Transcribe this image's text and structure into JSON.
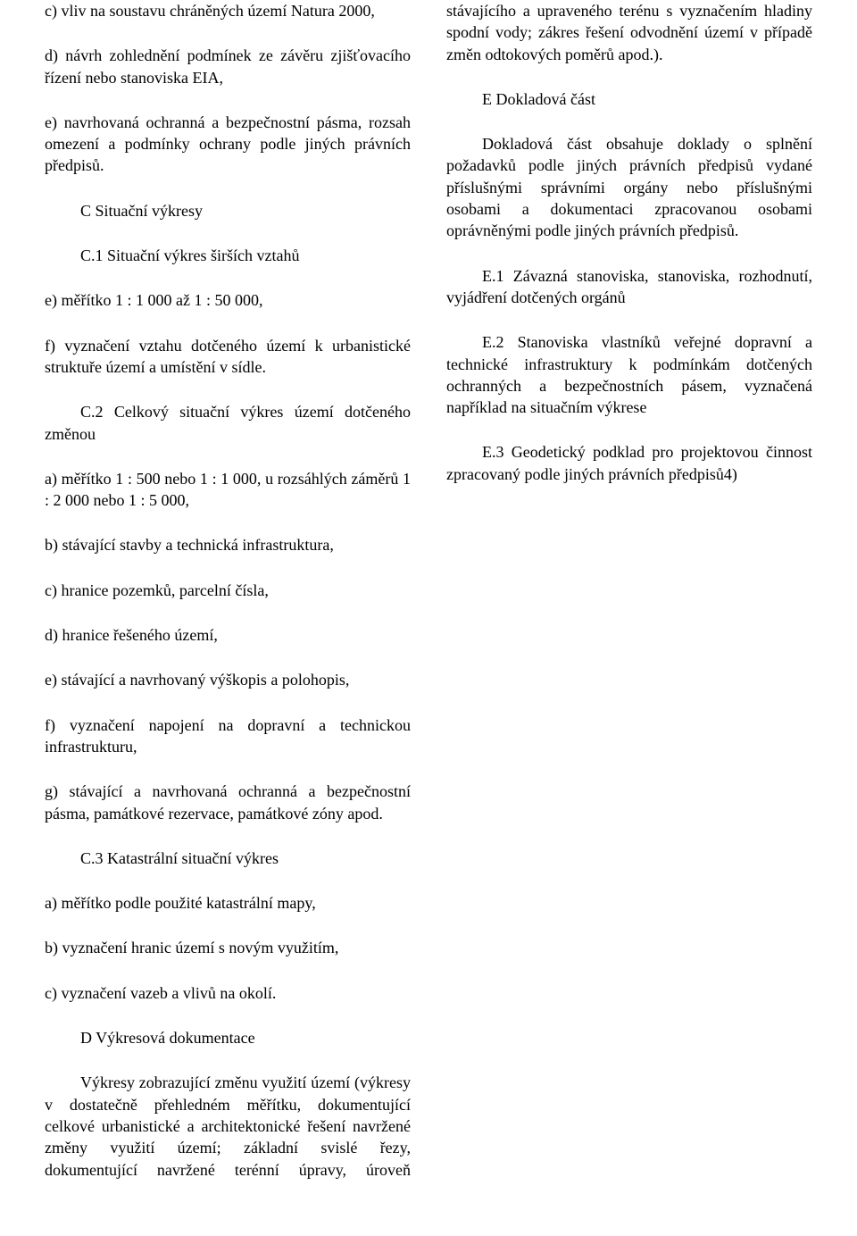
{
  "paragraphs": [
    {
      "text": "c) vliv na soustavu chráněných území Natura 2000,",
      "indent": false
    },
    {
      "text": "d) návrh zohlednění podmínek ze závěru zjišťovacího řízení nebo stanoviska EIA,",
      "indent": false
    },
    {
      "text": "e) navrhovaná ochranná a bezpečnostní pásma, rozsah omezení a podmínky ochrany podle jiných právních předpisů.",
      "indent": false
    },
    {
      "text": "C Situační výkresy",
      "indent": true
    },
    {
      "text": "C.1 Situační výkres širších vztahů",
      "indent": true
    },
    {
      "text": "e) měřítko 1 : 1 000 až 1 : 50 000,",
      "indent": false
    },
    {
      "text": "f) vyznačení vztahu dotčeného území k urbanistické struktuře území a umístění v sídle.",
      "indent": false
    },
    {
      "text": "C.2 Celkový situační výkres území dotčeného změnou",
      "indent": true
    },
    {
      "text": "a) měřítko 1 : 500 nebo 1 : 1 000, u rozsáhlých záměrů 1 : 2 000 nebo 1 : 5 000,",
      "indent": false
    },
    {
      "text": "b) stávající stavby a technická infrastruktura,",
      "indent": false
    },
    {
      "text": "c) hranice pozemků, parcelní čísla,",
      "indent": false
    },
    {
      "text": "d) hranice řešeného území,",
      "indent": false
    },
    {
      "text": "e) stávající a navrhovaný výškopis a polohopis,",
      "indent": false
    },
    {
      "text": "f) vyznačení napojení na dopravní a technickou infrastrukturu,",
      "indent": false
    },
    {
      "text": "g) stávající a navrhovaná ochranná a bezpečnostní pásma, památkové rezervace, památkové zóny apod.",
      "indent": false
    },
    {
      "text": "C.3 Katastrální situační výkres",
      "indent": true
    },
    {
      "text": "a) měřítko podle použité katastrální mapy,",
      "indent": false
    },
    {
      "text": "b) vyznačení hranic území s novým využitím,",
      "indent": false
    },
    {
      "text": "c) vyznačení vazeb a vlivů na okolí.",
      "indent": false
    },
    {
      "text": "D Výkresová dokumentace",
      "indent": true
    },
    {
      "text": "Výkresy zobrazující změnu využití území (výkresy v dostatečně přehledném měřítku, dokumentující celkové urbanistické a architektonické řešení navržené změny využití území; základní svislé řezy, dokumentující navržené terénní úpravy, úroveň stávajícího a upraveného terénu s vyznačením hladiny spodní vody; zákres řešení odvodnění území v případě změn odtokových poměrů apod.).",
      "indent": true
    },
    {
      "text": "E Dokladová část",
      "indent": true
    },
    {
      "text": "Dokladová část obsahuje doklady o splnění požadavků podle jiných právních předpisů vydané příslušnými správními orgány nebo příslušnými osobami a dokumentaci zpracovanou osobami oprávněnými podle jiných právních předpisů.",
      "indent": true
    },
    {
      "text": "E.1 Závazná stanoviska, stanoviska, rozhodnutí, vyjádření dotčených orgánů",
      "indent": true
    },
    {
      "text": "E.2 Stanoviska vlastníků veřejné dopravní a technické infrastruktury k podmínkám dotčených ochranných a bezpečnostních pásem, vyznačená například na situačním výkrese",
      "indent": true
    },
    {
      "text": "E.3 Geodetický podklad pro projektovou činnost zpracovaný podle jiných právních předpisů4)",
      "indent": true
    }
  ]
}
